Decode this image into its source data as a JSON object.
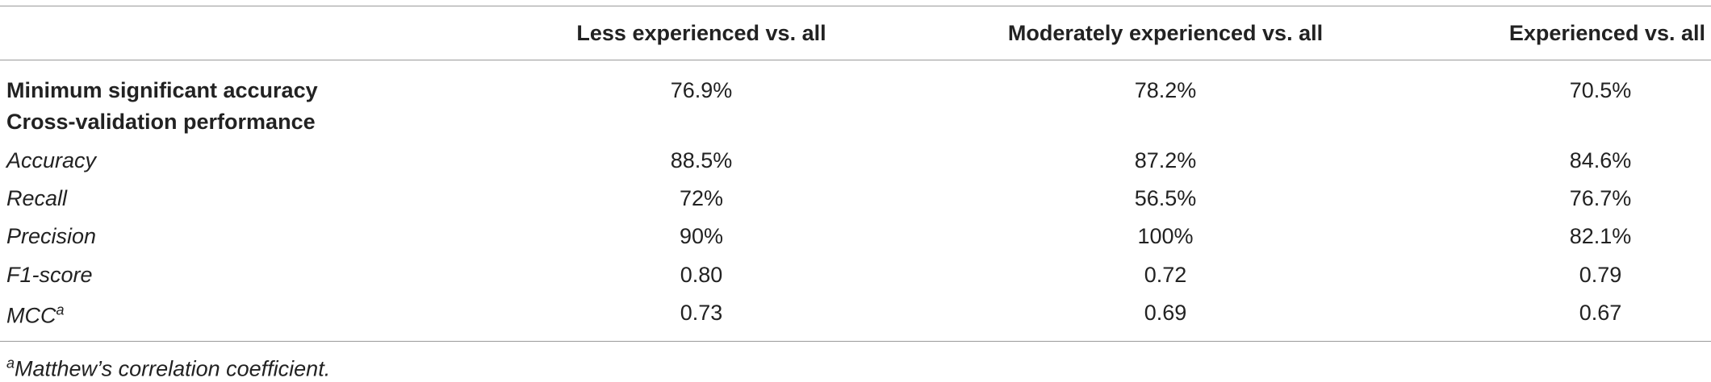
{
  "table": {
    "columns": [
      "Less experienced vs. all",
      "Moderately experienced vs. all",
      "Experienced vs. all"
    ],
    "rows": [
      {
        "label": "Minimum significant accuracy",
        "cells": [
          "76.9%",
          "78.2%",
          "70.5%"
        ]
      },
      {
        "label": "Cross-validation performance"
      },
      {
        "label": "Accuracy",
        "cells": [
          "88.5%",
          "87.2%",
          "84.6%"
        ]
      },
      {
        "label": "Recall",
        "cells": [
          "72%",
          "56.5%",
          "76.7%"
        ]
      },
      {
        "label": "Precision",
        "cells": [
          "90%",
          "100%",
          "82.1%"
        ]
      },
      {
        "label": "F1-score",
        "cells": [
          "0.80",
          "0.72",
          "0.79"
        ]
      },
      {
        "label": "MCC",
        "label_sup": "a",
        "cells": [
          "0.73",
          "0.69",
          "0.67"
        ]
      }
    ]
  },
  "footnote": {
    "marker": "a",
    "text": "Matthew’s correlation coefficient."
  }
}
